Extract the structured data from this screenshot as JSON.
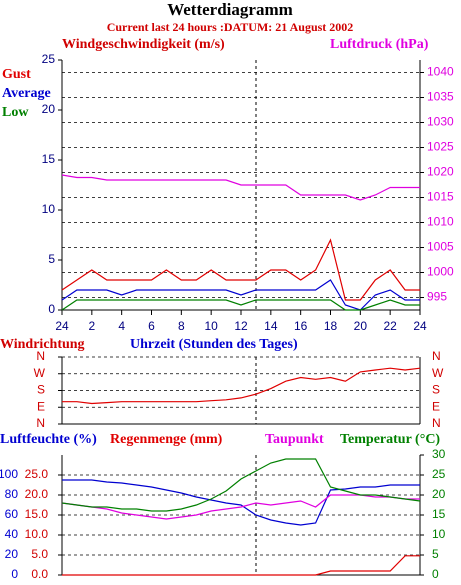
{
  "chart_data": [
    {
      "type": "line",
      "title": "Wetterdiagramm",
      "subtitle": "Current last 24 hours :DATUM: 21 August 2002",
      "ylabel": "Windgeschwindigkeit (m/s)",
      "y2label": "Luftdruck (hPa)",
      "x": [
        0,
        1,
        2,
        3,
        4,
        5,
        6,
        7,
        8,
        9,
        10,
        11,
        12,
        13,
        14,
        15,
        16,
        17,
        18,
        19,
        20,
        21,
        22,
        23,
        24
      ],
      "xlim": [
        0,
        24
      ],
      "xticks": [
        {
          "value": 0,
          "label": "24"
        },
        2,
        4,
        6,
        8,
        10,
        12,
        14,
        16,
        18,
        20,
        22,
        24
      ],
      "ylim": [
        0,
        25
      ],
      "yticks": [
        0,
        5,
        10,
        15,
        20,
        25
      ],
      "y2lim": [
        992.5,
        1042.5
      ],
      "y2ticks": [
        995,
        1000,
        1005,
        1010,
        1015,
        1020,
        1025,
        1030,
        1035,
        1040
      ],
      "grid": true,
      "series": [
        {
          "name": "Gust",
          "color": "#e00000",
          "values": [
            2,
            3,
            4,
            3,
            3,
            3,
            3,
            4,
            3,
            3,
            4,
            3,
            3,
            3,
            4,
            4,
            3,
            4,
            7,
            1,
            1,
            3,
            4,
            2,
            2
          ]
        },
        {
          "name": "Average",
          "color": "#0000d0",
          "values": [
            1,
            2,
            2,
            2,
            1.5,
            2,
            2,
            2,
            2,
            2,
            2,
            2,
            1.5,
            2,
            2,
            2,
            2,
            2,
            3,
            0.5,
            0,
            1.5,
            2,
            1,
            1
          ]
        },
        {
          "name": "Low",
          "color": "#008000",
          "values": [
            0,
            1,
            1,
            1,
            1,
            1,
            1,
            1,
            1,
            1,
            1,
            1,
            0.5,
            1,
            1,
            1,
            1,
            1,
            1,
            0,
            0,
            0.5,
            1,
            0.5,
            0.5
          ]
        },
        {
          "name": "Luftdruck (hPa)",
          "color": "#e000e0",
          "axis": "y2",
          "values": [
            1019.5,
            1019,
            1019,
            1018.5,
            1018.5,
            1018.5,
            1018.5,
            1018.5,
            1018.5,
            1018.5,
            1018.5,
            1018.5,
            1017.5,
            1017.5,
            1017.5,
            1017.5,
            1015.5,
            1015.5,
            1015.5,
            1015.5,
            1014.5,
            1015.5,
            1017,
            1017,
            1017
          ]
        }
      ]
    },
    {
      "type": "line",
      "ylabel": "Windrichtung",
      "xlabel": "Uhrzeit (Stunden des Tages)",
      "x": [
        0,
        1,
        2,
        3,
        4,
        5,
        6,
        7,
        8,
        9,
        10,
        11,
        12,
        13,
        14,
        15,
        16,
        17,
        18,
        19,
        20,
        21,
        22,
        23,
        24
      ],
      "xlim": [
        0,
        24
      ],
      "ylim": [
        0,
        360
      ],
      "yticks": [
        {
          "value": 0,
          "label": "N"
        },
        {
          "value": 90,
          "label": "E"
        },
        {
          "value": 180,
          "label": "S"
        },
        {
          "value": 270,
          "label": "W"
        },
        {
          "value": 360,
          "label": "N"
        }
      ],
      "grid": true,
      "series": [
        {
          "color": "#e00000",
          "values": [
            120,
            120,
            110,
            115,
            120,
            120,
            120,
            120,
            120,
            120,
            125,
            130,
            140,
            160,
            190,
            230,
            250,
            240,
            250,
            230,
            280,
            290,
            300,
            290,
            300
          ]
        }
      ]
    },
    {
      "type": "line",
      "x": [
        0,
        1,
        2,
        3,
        4,
        5,
        6,
        7,
        8,
        9,
        10,
        11,
        12,
        13,
        14,
        15,
        16,
        17,
        18,
        19,
        20,
        21,
        22,
        23,
        24
      ],
      "xlim": [
        0,
        24
      ],
      "ylim": [
        0,
        120
      ],
      "yticks": [
        0,
        20,
        40,
        60,
        80,
        100
      ],
      "y3lim": [
        0,
        30
      ],
      "y3ticks": [
        {
          "value": 0,
          "label": "0.0"
        },
        {
          "value": 5,
          "label": "5.0"
        },
        {
          "value": 10,
          "label": "10.0"
        },
        {
          "value": 15,
          "label": "15.0"
        },
        {
          "value": 20,
          "label": "20.0"
        },
        {
          "value": 25,
          "label": "25.0"
        }
      ],
      "y2lim": [
        0,
        30
      ],
      "y2ticks": [
        0,
        5,
        10,
        15,
        20,
        25,
        30
      ],
      "grid": true,
      "series": [
        {
          "name": "Luftfeuchte (%)",
          "color": "#0000d0",
          "values": [
            95,
            95,
            95,
            93,
            92,
            90,
            88,
            85,
            82,
            78,
            75,
            72,
            70,
            60,
            55,
            52,
            50,
            52,
            85,
            86,
            88,
            88,
            90,
            90,
            90
          ]
        },
        {
          "name": "Regenmenge (mm)",
          "color": "#e00000",
          "axis": "y3",
          "values": [
            0,
            0,
            0,
            0,
            0,
            0,
            0,
            0,
            0,
            0,
            0,
            0,
            0,
            0,
            0,
            0,
            0,
            0,
            1,
            1,
            1,
            1,
            1,
            4.8,
            4.8
          ]
        },
        {
          "name": "Taupunkt",
          "color": "#e000e0",
          "axis": "y2",
          "values": [
            18,
            17.5,
            17,
            16.5,
            15.5,
            15,
            14.5,
            14,
            14.5,
            15,
            16,
            16.5,
            17,
            18,
            17.5,
            18,
            18.5,
            17,
            20,
            20,
            20,
            19.5,
            19.5,
            19,
            19
          ]
        },
        {
          "name": "Temperatur (°C)",
          "color": "#008000",
          "axis": "y2",
          "values": [
            18,
            17.5,
            17,
            17,
            16.5,
            16.5,
            16,
            16,
            16.5,
            17.5,
            19,
            21,
            24,
            26,
            28,
            29,
            29,
            29,
            22,
            21,
            20,
            20,
            19.5,
            19,
            18.5
          ]
        }
      ]
    }
  ]
}
